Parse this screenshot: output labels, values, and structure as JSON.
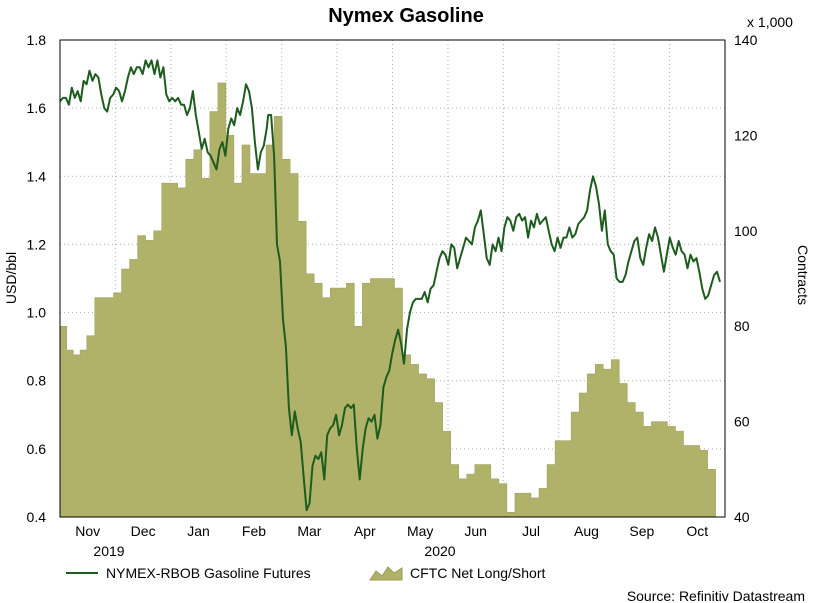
{
  "chart_data": {
    "type": "line+area",
    "title": "Nymex Gasoline",
    "y_left": {
      "label": "USD/bbl",
      "ticks": [
        "1.8",
        "1.6",
        "1.4",
        "1.2",
        "1.0",
        "0.8",
        "0.6",
        "0.4"
      ],
      "range": [
        0.4,
        1.8
      ]
    },
    "y_right": {
      "label": "Contracts",
      "multiplier": "x 1,000",
      "ticks": [
        "140",
        "120",
        "100",
        "80",
        "60",
        "40"
      ],
      "range": [
        40,
        140
      ]
    },
    "x_months": [
      "Nov",
      "Dec",
      "Jan",
      "Feb",
      "Mar",
      "Apr",
      "May",
      "Jun",
      "Jul",
      "Aug",
      "Sep",
      "Oct"
    ],
    "x_years": [
      "2019",
      "2020"
    ],
    "x_range_days": [
      0,
      360
    ],
    "grid": true,
    "legend": {
      "line_label": "NYMEX-RBOB Gasoline Futures",
      "area_label": "CFTC Net Long/Short"
    },
    "source": "Source: Refinitiv Datastream",
    "colors": {
      "line": "#1e5c1e",
      "area": "#b0b26a",
      "area_edge": "#9a9c58",
      "grid": "#b0b0b0"
    },
    "series": [
      {
        "name": "NYMEX-RBOB Gasoline Futures",
        "axis": "left",
        "points": [
          [
            0,
            1.62
          ],
          [
            2,
            1.63
          ],
          [
            4,
            1.63
          ],
          [
            6,
            1.61
          ],
          [
            8,
            1.66
          ],
          [
            10,
            1.63
          ],
          [
            12,
            1.65
          ],
          [
            14,
            1.62
          ],
          [
            16,
            1.68
          ],
          [
            18,
            1.67
          ],
          [
            20,
            1.71
          ],
          [
            22,
            1.68
          ],
          [
            24,
            1.7
          ],
          [
            26,
            1.69
          ],
          [
            28,
            1.64
          ],
          [
            30,
            1.6
          ],
          [
            32,
            1.59
          ],
          [
            34,
            1.63
          ],
          [
            36,
            1.64
          ],
          [
            38,
            1.66
          ],
          [
            40,
            1.65
          ],
          [
            42,
            1.62
          ],
          [
            44,
            1.65
          ],
          [
            46,
            1.69
          ],
          [
            48,
            1.72
          ],
          [
            50,
            1.7
          ],
          [
            52,
            1.72
          ],
          [
            54,
            1.72
          ],
          [
            56,
            1.7
          ],
          [
            58,
            1.74
          ],
          [
            60,
            1.72
          ],
          [
            62,
            1.74
          ],
          [
            64,
            1.7
          ],
          [
            66,
            1.74
          ],
          [
            68,
            1.69
          ],
          [
            70,
            1.72
          ],
          [
            72,
            1.64
          ],
          [
            74,
            1.62
          ],
          [
            76,
            1.63
          ],
          [
            78,
            1.62
          ],
          [
            80,
            1.63
          ],
          [
            82,
            1.61
          ],
          [
            84,
            1.61
          ],
          [
            86,
            1.58
          ],
          [
            88,
            1.6
          ],
          [
            90,
            1.65
          ],
          [
            92,
            1.58
          ],
          [
            94,
            1.53
          ],
          [
            96,
            1.48
          ],
          [
            98,
            1.51
          ],
          [
            100,
            1.47
          ],
          [
            102,
            1.46
          ],
          [
            104,
            1.44
          ],
          [
            106,
            1.42
          ],
          [
            108,
            1.48
          ],
          [
            110,
            1.5
          ],
          [
            112,
            1.46
          ],
          [
            114,
            1.54
          ],
          [
            116,
            1.57
          ],
          [
            118,
            1.55
          ],
          [
            120,
            1.6
          ],
          [
            122,
            1.58
          ],
          [
            124,
            1.62
          ],
          [
            126,
            1.67
          ],
          [
            128,
            1.65
          ],
          [
            130,
            1.6
          ],
          [
            132,
            1.5
          ],
          [
            134,
            1.42
          ],
          [
            136,
            1.47
          ],
          [
            138,
            1.49
          ],
          [
            140,
            1.54
          ],
          [
            141,
            1.58
          ],
          [
            143,
            1.58
          ],
          [
            145,
            1.46
          ],
          [
            147,
            1.2
          ],
          [
            149,
            1.15
          ],
          [
            151,
            0.98
          ],
          [
            153,
            0.9
          ],
          [
            155,
            0.72
          ],
          [
            157,
            0.64
          ],
          [
            159,
            0.71
          ],
          [
            161,
            0.66
          ],
          [
            163,
            0.62
          ],
          [
            165,
            0.52
          ],
          [
            167,
            0.42
          ],
          [
            169,
            0.44
          ],
          [
            171,
            0.55
          ],
          [
            173,
            0.58
          ],
          [
            175,
            0.57
          ],
          [
            177,
            0.59
          ],
          [
            179,
            0.51
          ],
          [
            181,
            0.64
          ],
          [
            183,
            0.66
          ],
          [
            185,
            0.67
          ],
          [
            187,
            0.7
          ],
          [
            189,
            0.64
          ],
          [
            191,
            0.67
          ],
          [
            193,
            0.72
          ],
          [
            195,
            0.73
          ],
          [
            197,
            0.72
          ],
          [
            199,
            0.73
          ],
          [
            201,
            0.6
          ],
          [
            203,
            0.51
          ],
          [
            205,
            0.6
          ],
          [
            207,
            0.66
          ],
          [
            209,
            0.69
          ],
          [
            211,
            0.68
          ],
          [
            213,
            0.7
          ],
          [
            215,
            0.63
          ],
          [
            217,
            0.67
          ],
          [
            219,
            0.78
          ],
          [
            221,
            0.81
          ],
          [
            223,
            0.83
          ],
          [
            225,
            0.88
          ],
          [
            227,
            0.92
          ],
          [
            229,
            0.95
          ],
          [
            231,
            0.91
          ],
          [
            233,
            0.85
          ],
          [
            235,
            0.95
          ],
          [
            237,
            1.0
          ],
          [
            239,
            1.03
          ],
          [
            241,
            1.04
          ],
          [
            243,
            1.04
          ],
          [
            245,
            1.04
          ],
          [
            247,
            1.06
          ],
          [
            249,
            1.03
          ],
          [
            251,
            1.07
          ],
          [
            253,
            1.08
          ],
          [
            255,
            1.12
          ],
          [
            257,
            1.16
          ],
          [
            259,
            1.18
          ],
          [
            261,
            1.17
          ],
          [
            263,
            1.14
          ],
          [
            265,
            1.2
          ],
          [
            267,
            1.19
          ],
          [
            269,
            1.13
          ],
          [
            271,
            1.16
          ],
          [
            273,
            1.19
          ],
          [
            275,
            1.22
          ],
          [
            277,
            1.21
          ],
          [
            279,
            1.2
          ],
          [
            281,
            1.25
          ],
          [
            283,
            1.27
          ],
          [
            285,
            1.3
          ],
          [
            287,
            1.23
          ],
          [
            289,
            1.16
          ],
          [
            291,
            1.14
          ],
          [
            293,
            1.2
          ],
          [
            295,
            1.18
          ],
          [
            297,
            1.22
          ],
          [
            299,
            1.18
          ],
          [
            301,
            1.25
          ],
          [
            303,
            1.28
          ],
          [
            305,
            1.27
          ],
          [
            307,
            1.24
          ],
          [
            309,
            1.28
          ],
          [
            311,
            1.29
          ],
          [
            313,
            1.27
          ],
          [
            315,
            1.28
          ],
          [
            317,
            1.22
          ],
          [
            319,
            1.27
          ],
          [
            321,
            1.25
          ],
          [
            323,
            1.29
          ],
          [
            325,
            1.26
          ],
          [
            327,
            1.27
          ],
          [
            329,
            1.28
          ],
          [
            331,
            1.24
          ],
          [
            333,
            1.2
          ],
          [
            335,
            1.18
          ],
          [
            337,
            1.22
          ],
          [
            339,
            1.19
          ],
          [
            341,
            1.22
          ],
          [
            343,
            1.22
          ],
          [
            345,
            1.25
          ],
          [
            347,
            1.22
          ],
          [
            349,
            1.23
          ],
          [
            351,
            1.26
          ],
          [
            353,
            1.27
          ],
          [
            355,
            1.28
          ],
          [
            357,
            1.3
          ],
          [
            359,
            1.36
          ],
          [
            361,
            1.4
          ],
          [
            363,
            1.37
          ],
          [
            365,
            1.32
          ],
          [
            367,
            1.24
          ],
          [
            369,
            1.3
          ],
          [
            371,
            1.2
          ],
          [
            373,
            1.18
          ],
          [
            375,
            1.17
          ],
          [
            377,
            1.1
          ],
          [
            379,
            1.09
          ],
          [
            381,
            1.09
          ],
          [
            383,
            1.11
          ],
          [
            385,
            1.15
          ],
          [
            387,
            1.18
          ],
          [
            389,
            1.21
          ],
          [
            391,
            1.22
          ],
          [
            393,
            1.16
          ],
          [
            395,
            1.14
          ],
          [
            397,
            1.19
          ],
          [
            399,
            1.23
          ],
          [
            401,
            1.21
          ],
          [
            403,
            1.25
          ],
          [
            405,
            1.22
          ],
          [
            407,
            1.17
          ],
          [
            409,
            1.12
          ],
          [
            411,
            1.17
          ],
          [
            413,
            1.22
          ],
          [
            415,
            1.19
          ],
          [
            417,
            1.17
          ],
          [
            419,
            1.21
          ],
          [
            421,
            1.18
          ],
          [
            423,
            1.17
          ],
          [
            425,
            1.13
          ],
          [
            427,
            1.17
          ],
          [
            429,
            1.15
          ],
          [
            431,
            1.16
          ],
          [
            433,
            1.12
          ],
          [
            435,
            1.07
          ],
          [
            437,
            1.04
          ],
          [
            439,
            1.05
          ],
          [
            441,
            1.08
          ],
          [
            443,
            1.11
          ],
          [
            445,
            1.12
          ],
          [
            447,
            1.09
          ]
        ]
      },
      {
        "name": "CFTC Net Long/Short",
        "axis": "right",
        "steps": [
          [
            0,
            80
          ],
          [
            5,
            75
          ],
          [
            10,
            74
          ],
          [
            15,
            75
          ],
          [
            20,
            78
          ],
          [
            26,
            86
          ],
          [
            32,
            86
          ],
          [
            40,
            87
          ],
          [
            46,
            92
          ],
          [
            52,
            94
          ],
          [
            58,
            99
          ],
          [
            64,
            98
          ],
          [
            70,
            100
          ],
          [
            76,
            110
          ],
          [
            82,
            110
          ],
          [
            88,
            109
          ],
          [
            94,
            115
          ],
          [
            100,
            117
          ],
          [
            106,
            111
          ],
          [
            112,
            125
          ],
          [
            118,
            131
          ],
          [
            124,
            120
          ],
          [
            130,
            110
          ],
          [
            136,
            118
          ],
          [
            142,
            112
          ],
          [
            148,
            112
          ],
          [
            154,
            118
          ],
          [
            160,
            124
          ],
          [
            166,
            115
          ],
          [
            172,
            112
          ],
          [
            178,
            102
          ],
          [
            184,
            91
          ],
          [
            190,
            89
          ],
          [
            196,
            86
          ],
          [
            202,
            88
          ],
          [
            208,
            88
          ],
          [
            214,
            89
          ],
          [
            220,
            80
          ],
          [
            226,
            89
          ],
          [
            232,
            90
          ],
          [
            238,
            90
          ],
          [
            244,
            90
          ],
          [
            250,
            88
          ],
          [
            256,
            74
          ],
          [
            262,
            72
          ],
          [
            268,
            70
          ],
          [
            274,
            69
          ],
          [
            280,
            64
          ],
          [
            286,
            58
          ],
          [
            292,
            51
          ],
          [
            298,
            48
          ],
          [
            304,
            49
          ],
          [
            310,
            51
          ],
          [
            316,
            51
          ],
          [
            322,
            48
          ],
          [
            328,
            47
          ],
          [
            334,
            41
          ],
          [
            340,
            45
          ],
          [
            346,
            45
          ],
          [
            352,
            44
          ],
          [
            358,
            46
          ],
          [
            364,
            51
          ],
          [
            370,
            56
          ],
          [
            376,
            56
          ],
          [
            382,
            62
          ],
          [
            388,
            66
          ],
          [
            394,
            70
          ],
          [
            400,
            72
          ],
          [
            406,
            71
          ],
          [
            412,
            73
          ],
          [
            418,
            68
          ],
          [
            424,
            64
          ],
          [
            430,
            62
          ],
          [
            436,
            59
          ],
          [
            442,
            60
          ],
          [
            448,
            60
          ],
          [
            454,
            59
          ],
          [
            460,
            58
          ],
          [
            466,
            55
          ],
          [
            472,
            55
          ],
          [
            478,
            54
          ],
          [
            484,
            50
          ],
          [
            490,
            40
          ],
          [
            497,
            40
          ]
        ]
      }
    ]
  }
}
